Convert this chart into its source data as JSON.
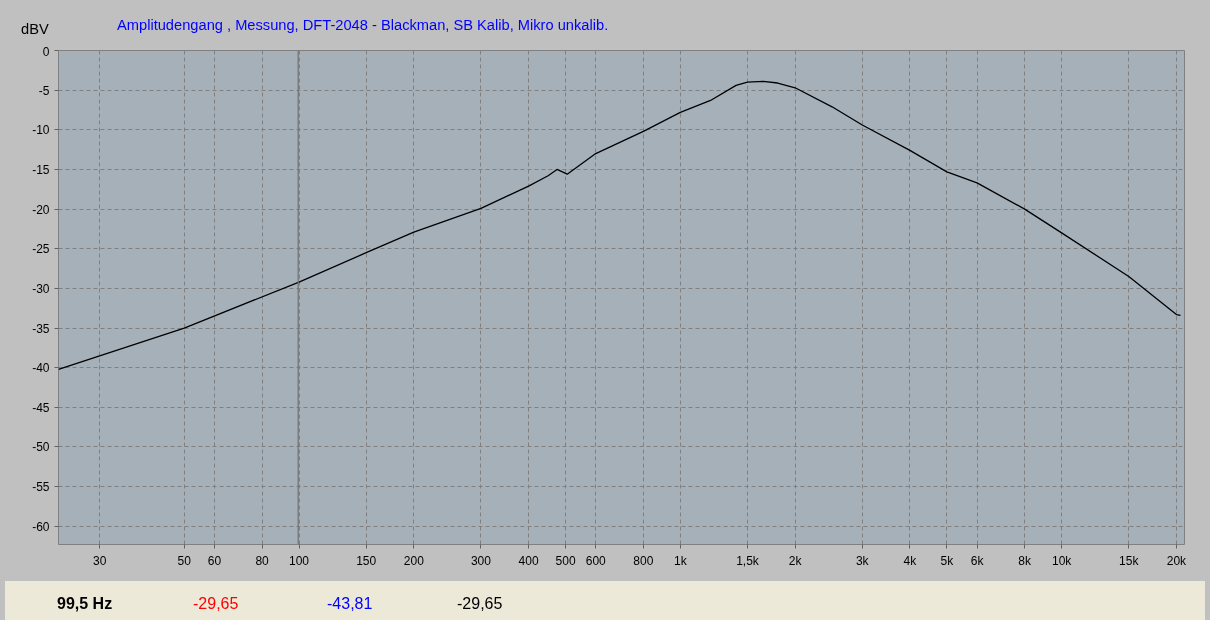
{
  "chart_data": {
    "type": "line",
    "title": "Amplitudengang , Messung, DFT-2048 - Blackman, SB Kalib, Mikro unkalib.",
    "ylabel": "dBV",
    "log": "x",
    "x": [
      23.4,
      30,
      50,
      100,
      150,
      200,
      300,
      400,
      450,
      475,
      505,
      600,
      800,
      1000,
      1200,
      1400,
      1500,
      1650,
      1800,
      2000,
      2500,
      3000,
      4000,
      5000,
      6000,
      8000,
      10000,
      15000,
      20000,
      20500
    ],
    "series": [
      {
        "color": "#000000",
        "values": [
          -40.2,
          -38.5,
          -35.0,
          -29.2,
          -25.5,
          -22.9,
          -19.9,
          -17.1,
          -15.8,
          -15.0,
          -15.6,
          -13.0,
          -10.2,
          -7.8,
          -6.3,
          -4.4,
          -4.0,
          -3.9,
          -4.1,
          -4.7,
          -7.1,
          -9.4,
          -12.6,
          -15.3,
          -16.7,
          -20.0,
          -23.0,
          -28.5,
          -33.3,
          -33.4
        ]
      }
    ],
    "xlim": [
      23.4,
      21000
    ],
    "ylim": [
      -62.3,
      0
    ],
    "xticks": [
      30,
      50,
      60,
      80,
      100,
      150,
      200,
      300,
      400,
      500,
      600,
      800,
      {
        "value": 1000,
        "label": "1k"
      },
      {
        "value": 1500,
        "label": "1,5k"
      },
      {
        "value": 2000,
        "label": "2k"
      },
      {
        "value": 3000,
        "label": "3k"
      },
      {
        "value": 4000,
        "label": "4k"
      },
      {
        "value": 5000,
        "label": "5k"
      },
      {
        "value": 6000,
        "label": "6k"
      },
      {
        "value": 8000,
        "label": "8k"
      },
      {
        "value": 10000,
        "label": "10k"
      },
      {
        "value": 15000,
        "label": "15k"
      },
      {
        "value": 20000,
        "label": "20k"
      }
    ],
    "yticks": [
      0,
      -5,
      -10,
      -15,
      -20,
      -25,
      -30,
      -35,
      -40,
      -45,
      -50,
      -55,
      -60
    ],
    "grid": true,
    "line_style": "solid",
    "marker": "none",
    "ref_lines": [
      {
        "axis": "x",
        "value": 99.5,
        "color": "#707070"
      }
    ],
    "annotations": [
      "99,5 Hz",
      "-29,65",
      "-43,81",
      "-29,65"
    ]
  }
}
